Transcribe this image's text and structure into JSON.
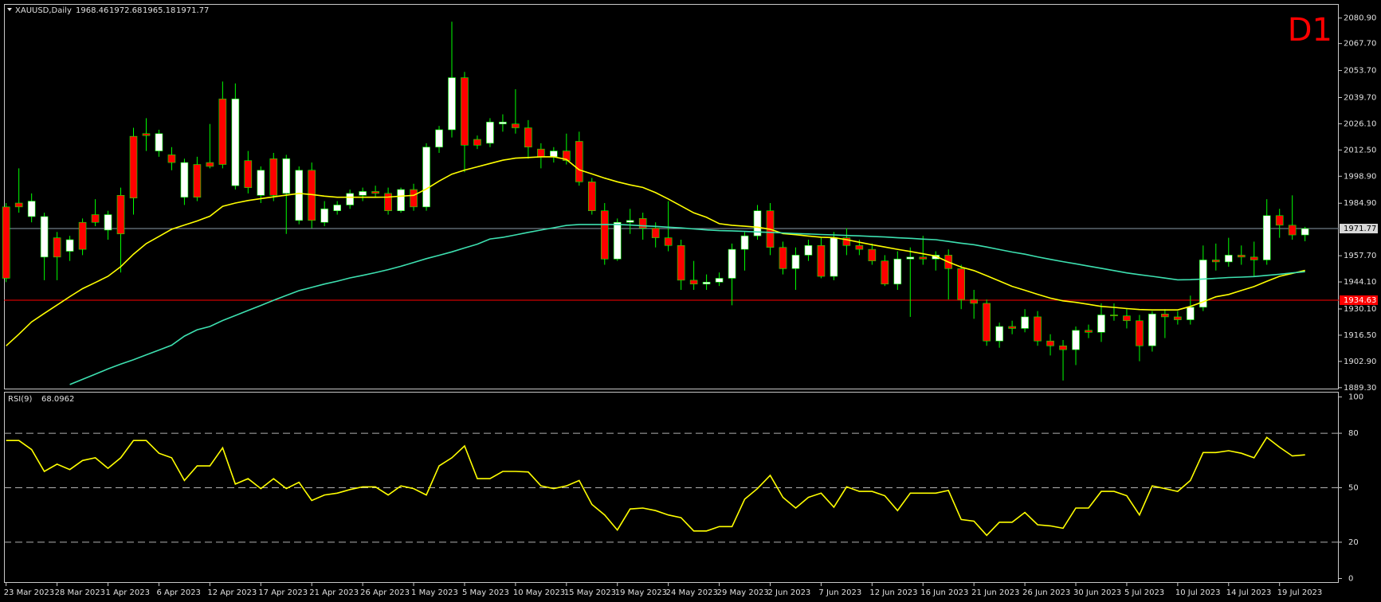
{
  "chart_data": [
    {
      "type": "candlestick",
      "title": "XAUUSD,Daily",
      "timeframe": "D1",
      "categories": [
        "23 Mar 2023",
        null,
        null,
        null,
        "28 Mar 2023",
        null,
        null,
        null,
        "1 Apr 2023",
        null,
        null,
        null,
        "6 Apr 2023",
        null,
        null,
        null,
        "12 Apr 2023",
        null,
        null,
        null,
        "17 Apr 2023",
        null,
        null,
        null,
        "21 Apr 2023",
        null,
        null,
        null,
        "26 Apr 2023",
        null,
        null,
        null,
        "1 May 2023",
        null,
        null,
        null,
        "5 May 2023",
        null,
        null,
        null,
        "10 May 2023",
        null,
        null,
        null,
        "15 May 2023",
        null,
        null,
        null,
        "19 May 2023",
        null,
        null,
        null,
        "24 May 2023",
        null,
        null,
        null,
        "29 May 2023",
        null,
        null,
        null,
        "2 Jun 2023",
        null,
        null,
        null,
        "7 Jun 2023",
        null,
        null,
        null,
        "12 Jun 2023",
        null,
        null,
        null,
        "16 Jun 2023",
        null,
        null,
        null,
        "21 Jun 2023",
        null,
        null,
        null,
        "26 Jun 2023",
        null,
        null,
        null,
        "30 Jun 2023",
        null,
        null,
        null,
        "5 Jul 2023",
        null,
        null,
        null,
        "10 Jul 2023",
        null,
        null,
        null,
        "14 Jul 2023",
        null,
        null,
        null,
        "19 Jul 2023",
        null,
        null
      ],
      "open": [
        1983,
        1985,
        1978,
        1957,
        1967,
        1960,
        1975,
        1979,
        1971,
        1989,
        2019.6,
        2021,
        2012,
        2010,
        1988,
        2005,
        2006,
        2039,
        1994,
        2007,
        1989,
        2008,
        1990,
        1976,
        2002,
        1975,
        1981,
        1984,
        1989,
        1991,
        1990,
        1981,
        1992,
        1983,
        2014,
        2023,
        2050,
        2018,
        2016,
        2026,
        2026,
        2024,
        2013,
        2009,
        2012,
        2017,
        1996,
        1981,
        1956,
        1975,
        1977,
        1972,
        1967,
        1963,
        1945,
        1943,
        1944,
        1946,
        1961,
        1968,
        1981,
        1962,
        1951,
        1958,
        1963,
        1947,
        1967,
        1963,
        1961,
        1955,
        1943,
        1956,
        1957,
        1956,
        1958,
        1951,
        1935,
        1933,
        1913.5,
        1921,
        1920,
        1926,
        1913.5,
        1911,
        1909,
        1919,
        1918,
        1927,
        1926.5,
        1924,
        1911,
        1927.5,
        1926,
        1924.5,
        1931,
        1955.5,
        1954.5,
        1958,
        1957,
        1955.5,
        1978.5,
        1973.5,
        1968.46
      ],
      "high": [
        1985,
        2003,
        1990,
        1980,
        1970,
        1968,
        1977,
        1987,
        1981,
        1993,
        2024,
        2029,
        2023,
        2014,
        2008,
        2009,
        2026,
        2048,
        2047,
        2012,
        2004,
        2011,
        2010,
        2004,
        2006,
        1986,
        1986,
        1992,
        1993,
        1994,
        1993,
        1993,
        1995,
        2016,
        2025,
        2079,
        2053,
        2020,
        2029,
        2031,
        2044,
        2028,
        2016,
        2014,
        2021,
        2022,
        1998,
        1985,
        1977,
        1982,
        1980,
        1975,
        1986,
        1966,
        1955,
        1948,
        1949,
        1964,
        1970,
        1984,
        1985,
        1965,
        1962,
        1966,
        1967,
        1970,
        1972,
        1966,
        1964,
        1958,
        1960,
        1962,
        1968,
        1960,
        1961,
        1953,
        1940,
        1935,
        1923,
        1924,
        1930,
        1929,
        1917,
        1914,
        1921,
        1922,
        1933,
        1933,
        1930,
        1927,
        1929,
        1930,
        1929,
        1937,
        1963,
        1964,
        1967,
        1963,
        1965,
        1987,
        1982,
        1989,
        1972.68
      ],
      "low": [
        1944,
        1980,
        1975,
        1945,
        1945,
        1955,
        1958,
        1973,
        1966,
        1949,
        1979,
        2012,
        2009,
        2002,
        1984,
        1986,
        2003,
        2003,
        1992,
        1990,
        1985,
        1986,
        1969,
        1974,
        1972,
        1973,
        1979,
        1982,
        1986,
        1988,
        1979,
        1980,
        1981,
        1981,
        2011,
        2019,
        2001,
        2013,
        2014,
        2022,
        2021,
        2008,
        2003,
        2006,
        2005,
        1994,
        1979,
        1953,
        1955,
        1969,
        1966,
        1962,
        1960,
        1940,
        1940,
        1940,
        1942,
        1932,
        1950,
        1966,
        1958,
        1948,
        1940,
        1955,
        1946,
        1945,
        1958,
        1958,
        1953,
        1942,
        1940,
        1926,
        1953,
        1950,
        1935,
        1930,
        1925,
        1911,
        1910,
        1917,
        1918,
        1911,
        1906,
        1893,
        1901,
        1915,
        1913,
        1924,
        1920,
        1903,
        1908,
        1915,
        1922,
        1922,
        1929,
        1950,
        1952,
        1953,
        1947,
        1953,
        1967,
        1966,
        1965.18
      ],
      "close": [
        1946,
        1983,
        1986,
        1978,
        1957,
        1966,
        1961,
        1975,
        1979,
        1969,
        1987.6,
        2020,
        2021,
        2006,
        2006,
        1988,
        2004,
        2005,
        2039,
        1993,
        2002,
        1989,
        2008,
        2002,
        1976,
        1982,
        1984,
        1990,
        1991,
        1990,
        1981,
        1992,
        1983,
        2014,
        2023,
        2050,
        2015,
        2015,
        2027,
        2027,
        2024,
        2014,
        2009,
        2012,
        2007,
        1996,
        1981,
        1956,
        1975,
        1976,
        1972,
        1967,
        1963,
        1945,
        1943,
        1944,
        1946,
        1961,
        1968,
        1981,
        1962,
        1951,
        1958,
        1963,
        1947,
        1967,
        1963,
        1961,
        1955,
        1943,
        1956,
        1957,
        1956,
        1958,
        1951,
        1935,
        1933,
        1913.5,
        1921,
        1920,
        1926,
        1913.5,
        1911,
        1909,
        1919,
        1918,
        1927,
        1926.5,
        1924,
        1911,
        1927.5,
        1926,
        1924.5,
        1931,
        1955.5,
        1954.5,
        1958,
        1957,
        1955.5,
        1978.5,
        1973.5,
        1968.46,
        1971.77
      ],
      "up_color": "#ffffff",
      "down_color": "#ff0000",
      "wick_color": "#00ff00",
      "overlays": [
        {
          "color": "#ffff00",
          "values": [
            1911,
            1917,
            1923.4,
            1927.8,
            1932.1,
            1936.5,
            1940.6,
            1943.8,
            1947,
            1952,
            1958.5,
            1964,
            1967.7,
            1971.4,
            1973.6,
            1975.7,
            1978.2,
            1983.3,
            1985,
            1986.3,
            1987.3,
            1988.2,
            1989.1,
            1990,
            1989.4,
            1988.6,
            1988,
            1988,
            1988,
            1988,
            1988.1,
            1988.6,
            1989,
            1992.3,
            1996.4,
            2000,
            2002.1,
            2003.8,
            2005.5,
            2007.2,
            2008.3,
            2008.6,
            2009,
            2009,
            2007.6,
            2002.2,
            2000.1,
            1997.9,
            1996,
            1994.4,
            1993.1,
            1990.4,
            1987.1,
            1983.5,
            1979.9,
            1977.6,
            1974.3,
            1973.5,
            1973,
            1972.5,
            1971.4,
            1969.2,
            1968.6,
            1967.9,
            1967.3,
            1967.1,
            1966,
            1964.7,
            1963.4,
            1962.2,
            1961,
            1959.9,
            1958.7,
            1957.5,
            1954.4,
            1951.8,
            1950,
            1947.3,
            1944.6,
            1941.8,
            1939.8,
            1937.7,
            1935.7,
            1934.3,
            1933.5,
            1932.5,
            1931.4,
            1930.9,
            1930.3,
            1929.8,
            1929.6,
            1929.6,
            1929.6,
            1931.4,
            1933.8,
            1936.4,
            1937.6,
            1939.7,
            1941.7,
            1944.4,
            1947,
            1948.5,
            1950.1
          ]
        },
        {
          "color": "#3de0b0",
          "values": [
            null,
            null,
            null,
            null,
            null,
            1890.9,
            1893.6,
            1896.3,
            1899,
            1901.5,
            1903.8,
            1906.3,
            1908.8,
            1911.3,
            1916,
            1919.3,
            1921,
            1924.1,
            1926.7,
            1929.3,
            1931.9,
            1934.6,
            1937.1,
            1939.6,
            1941.3,
            1943,
            1944.5,
            1946.2,
            1947.5,
            1948.9,
            1950.5,
            1952.2,
            1954.2,
            1956.2,
            1957.9,
            1959.7,
            1961.7,
            1963.7,
            1966.4,
            1967.2,
            1968.5,
            1969.8,
            1971,
            1972.2,
            1973.4,
            1973.9,
            1973.9,
            1973.9,
            1973.9,
            1973.6,
            1973.2,
            1972.9,
            1972.5,
            1972.1,
            1971.6,
            1971.1,
            1970.7,
            1970.6,
            1970.3,
            1970,
            1969.8,
            1969.5,
            1969.2,
            1969,
            1968.7,
            1968.5,
            1968.2,
            1968,
            1967.7,
            1967.4,
            1967,
            1966.7,
            1966.3,
            1966,
            1965.1,
            1964.2,
            1963.4,
            1962.2,
            1960.9,
            1959.6,
            1958.5,
            1957.1,
            1955.8,
            1954.6,
            1953.5,
            1952.3,
            1951.2,
            1950,
            1948.8,
            1947.9,
            1947,
            1946.1,
            1945.2,
            1945.3,
            1945.6,
            1946,
            1946.4,
            1946.6,
            1946.9,
            1947.5,
            1948.1,
            1948.8,
            1949.4
          ]
        }
      ],
      "hline": {
        "value": 1934.63,
        "color": "#ff0000"
      },
      "ylim": [
        1888.4,
        2088.2
      ],
      "yticks": [
        {
          "value": 2080.9,
          "label": "2080.90"
        },
        {
          "value": 2067.7,
          "label": "2067.70"
        },
        {
          "value": 2053.7,
          "label": "2053.70"
        },
        {
          "value": 2039.7,
          "label": "2039.70"
        },
        {
          "value": 2026.1,
          "label": "2026.10"
        },
        {
          "value": 2012.5,
          "label": "2012.50"
        },
        {
          "value": 1998.9,
          "label": "1998.90"
        },
        {
          "value": 1984.9,
          "label": "1984.90"
        },
        {
          "value": 1957.7,
          "label": "1957.70"
        },
        {
          "value": 1944.1,
          "label": "1944.10"
        },
        {
          "value": 1930.1,
          "label": "1930.10"
        },
        {
          "value": 1916.5,
          "label": "1916.50"
        },
        {
          "value": 1902.9,
          "label": "1902.90"
        },
        {
          "value": 1889.3,
          "label": "1889.30"
        }
      ]
    },
    {
      "type": "line",
      "title": "RSI(9)",
      "color": "#ffff00",
      "values": [
        76,
        76,
        71,
        59,
        63,
        60,
        65,
        66.5,
        60.7,
        66.5,
        76,
        76,
        69,
        66.5,
        54,
        62,
        62,
        72,
        52,
        55,
        49.5,
        55,
        49.5,
        53,
        43,
        46,
        47,
        49,
        50.5,
        50.5,
        46,
        51,
        49.5,
        46,
        62,
        66.5,
        73,
        55,
        55,
        59,
        59,
        58.7,
        51,
        49.5,
        51,
        54,
        40.8,
        35,
        26.7,
        38.3,
        38.8,
        37.4,
        35,
        33.5,
        26.2,
        26.2,
        28.6,
        28.6,
        43.7,
        49.5,
        56.8,
        44.7,
        38.8,
        44.7,
        47,
        39.3,
        50.5,
        48,
        48,
        45.6,
        37.4,
        47,
        47,
        47,
        48.5,
        32.5,
        31.6,
        23.8,
        31,
        31,
        36.4,
        29.6,
        29,
        27.7,
        38.8,
        38.8,
        48,
        48,
        45.6,
        35,
        51,
        49.5,
        48,
        54,
        69.4,
        69.4,
        70.4,
        69,
        66.5,
        77.7,
        72.3,
        67.5,
        68.0962
      ],
      "ylim": [
        -2.4,
        102.4
      ],
      "yticks": [
        0,
        20,
        50,
        80,
        100
      ],
      "level_style": "dashed"
    }
  ]
}
